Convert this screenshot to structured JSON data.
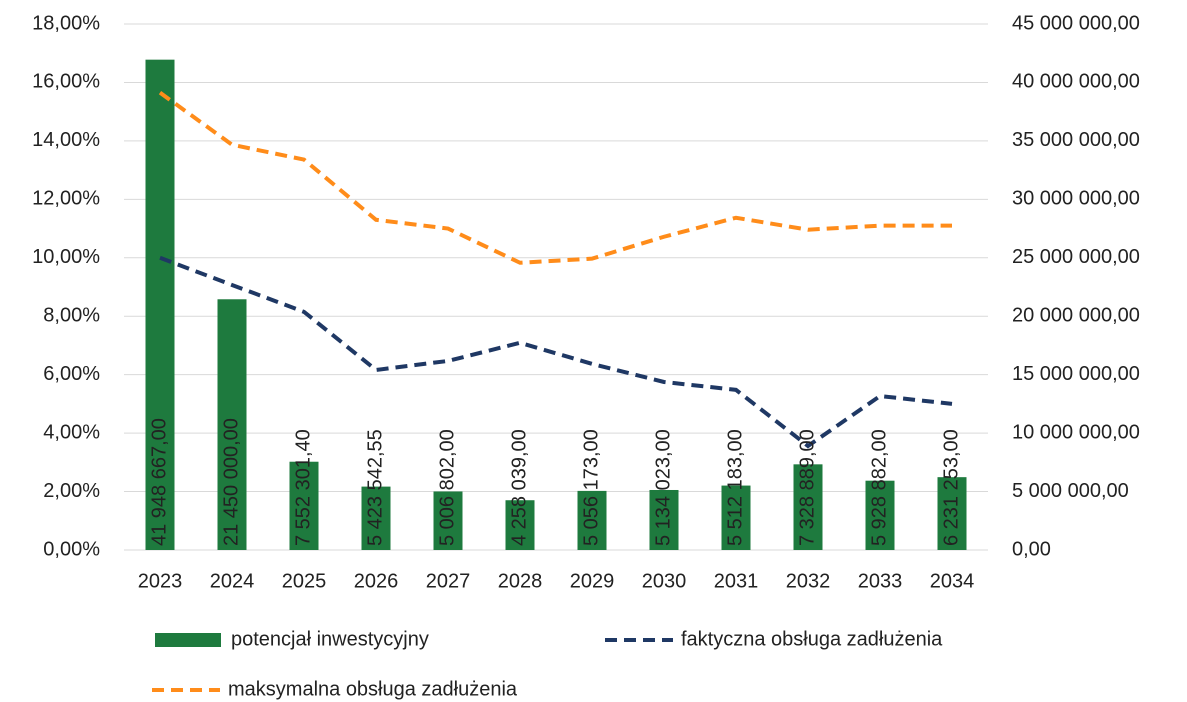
{
  "chart_data": {
    "type": "bar_line",
    "categories": [
      "2023",
      "2024",
      "2025",
      "2026",
      "2027",
      "2028",
      "2029",
      "2030",
      "2031",
      "2032",
      "2033",
      "2034"
    ],
    "series": [
      {
        "name": "potencjał inwestycyjny",
        "type": "bar",
        "axis": "y2",
        "color": "#1e7a3e",
        "values": [
          41948667.0,
          21450000.0,
          7552301.4,
          5423542.55,
          5006802.0,
          4258039.0,
          5056173.0,
          5134023.0,
          5512183.0,
          7328889.0,
          5928882.0,
          6231253.0
        ],
        "value_labels": [
          "41 948 667,00",
          "21 450 000,00",
          "7 552 301,40",
          "5 423 542,55",
          "5 006 802,00",
          "4 258 039,00",
          "5 056 173,00",
          "5 134 023,00",
          "5 512 183,00",
          "7 328 889,00",
          "5 928 882,00",
          "6 231 253,00"
        ]
      },
      {
        "name": "faktyczna obsługa zadłużenia",
        "type": "line",
        "color": "#1f3864",
        "values": [
          10.0,
          9.07,
          8.15,
          6.16,
          6.47,
          7.09,
          6.37,
          5.75,
          5.48,
          3.56,
          5.27,
          5.0
        ]
      },
      {
        "name": "maksymalna obsługa zadłużenia",
        "type": "line",
        "color": "#ff8c1a",
        "values": [
          15.65,
          13.87,
          13.36,
          11.3,
          11.0,
          9.83,
          9.97,
          10.72,
          11.37,
          10.96,
          11.1,
          11.1
        ]
      }
    ],
    "ylim": [
      0,
      18
    ],
    "yticks": [
      {
        "value": 0,
        "label": "0,00%"
      },
      {
        "value": 2,
        "label": "2,00%"
      },
      {
        "value": 4,
        "label": "4,00%"
      },
      {
        "value": 6,
        "label": "6,00%"
      },
      {
        "value": 8,
        "label": "8,00%"
      },
      {
        "value": 10,
        "label": "10,00%"
      },
      {
        "value": 12,
        "label": "12,00%"
      },
      {
        "value": 14,
        "label": "14,00%"
      },
      {
        "value": 16,
        "label": "16,00%"
      },
      {
        "value": 18,
        "label": "18,00%"
      }
    ],
    "y2lim": [
      0,
      45000000
    ],
    "y2ticks": [
      {
        "value": 0,
        "label": "0,00"
      },
      {
        "value": 5000000,
        "label": "5 000 000,00"
      },
      {
        "value": 10000000,
        "label": "10 000 000,00"
      },
      {
        "value": 15000000,
        "label": "15 000 000,00"
      },
      {
        "value": 20000000,
        "label": "20 000 000,00"
      },
      {
        "value": 25000000,
        "label": "25 000 000,00"
      },
      {
        "value": 30000000,
        "label": "30 000 000,00"
      },
      {
        "value": 35000000,
        "label": "35 000 000,00"
      },
      {
        "value": 40000000,
        "label": "40 000 000,00"
      },
      {
        "value": 45000000,
        "label": "45 000 000,00"
      }
    ],
    "grid": true,
    "legend": "bottom"
  }
}
